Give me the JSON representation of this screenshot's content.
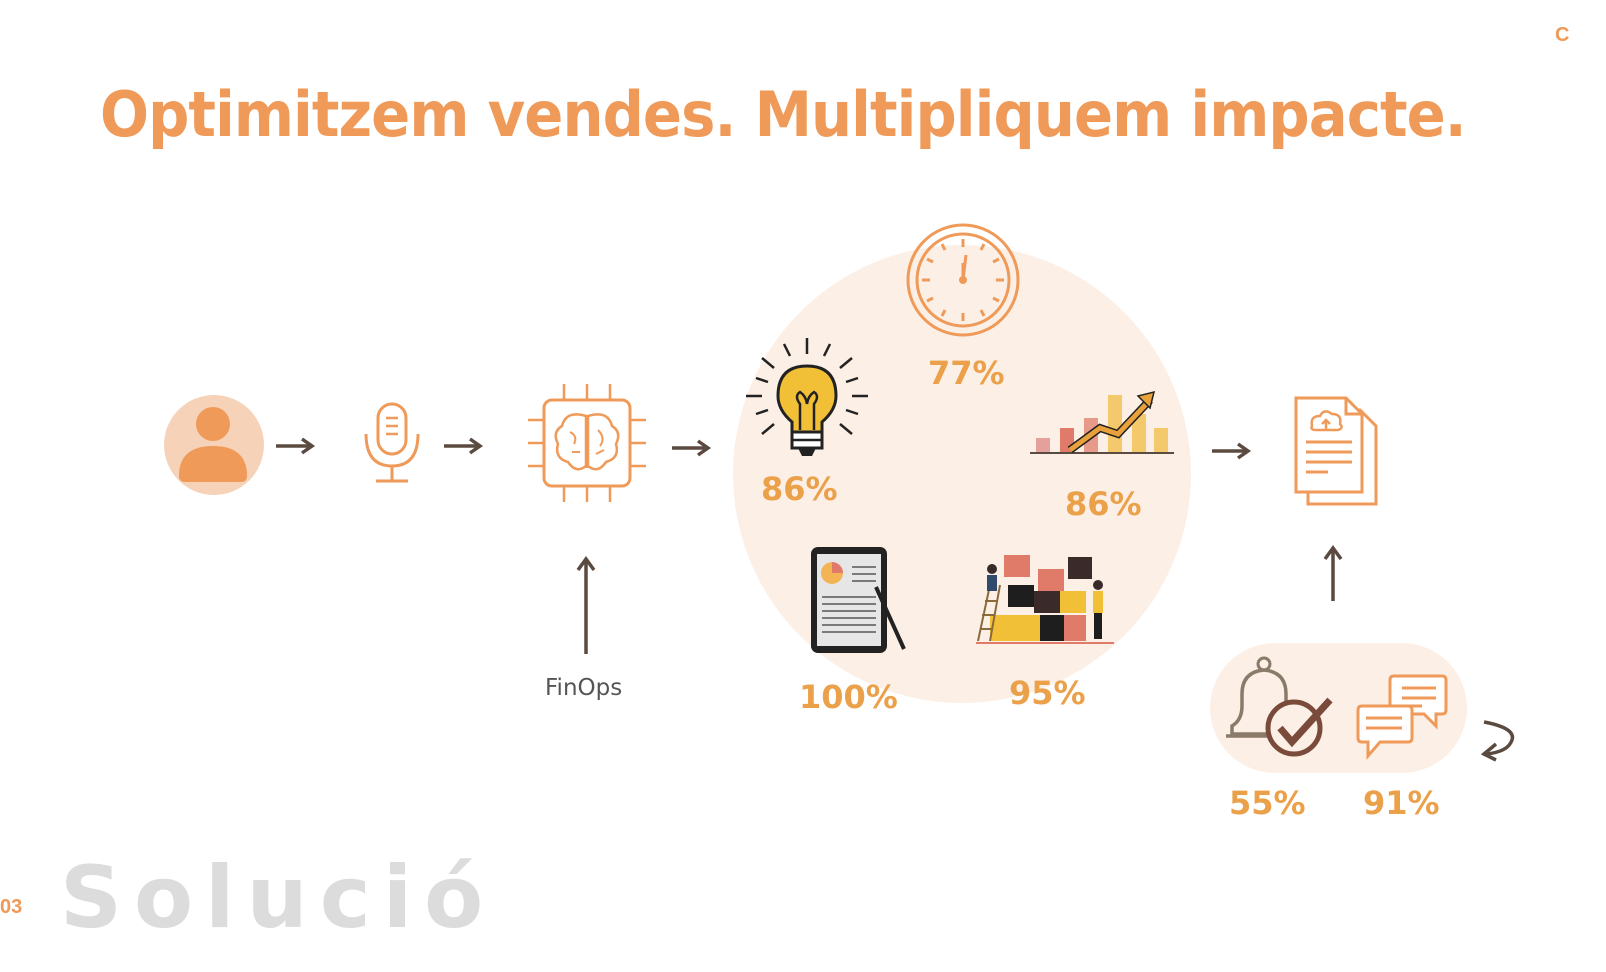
{
  "header": {
    "title": "Optimitzem vendes. Multipliquem impacte.",
    "corner_mark": "C"
  },
  "flow": {
    "finops_label": "FinOps",
    "stats": {
      "ideas": "86%",
      "time": "77%",
      "growth": "86%",
      "reports": "100%",
      "teamwork": "95%",
      "alerts": "55%",
      "messages": "91%"
    },
    "icons": [
      "user-icon",
      "microphone-icon",
      "ai-brain-chip-icon",
      "lightbulb-icon",
      "clock-icon",
      "bar-chart-growth-icon",
      "tablet-report-icon",
      "puzzle-team-icon",
      "cloud-document-icon",
      "bell-check-icon",
      "chat-bubbles-icon"
    ]
  },
  "footer": {
    "section_number": "03",
    "section_title": "Solució"
  },
  "colors": {
    "accent": "#ef9a58",
    "percent": "#eba04a",
    "arrow": "#5b4a40",
    "soft_bg": "#fcefe6"
  }
}
